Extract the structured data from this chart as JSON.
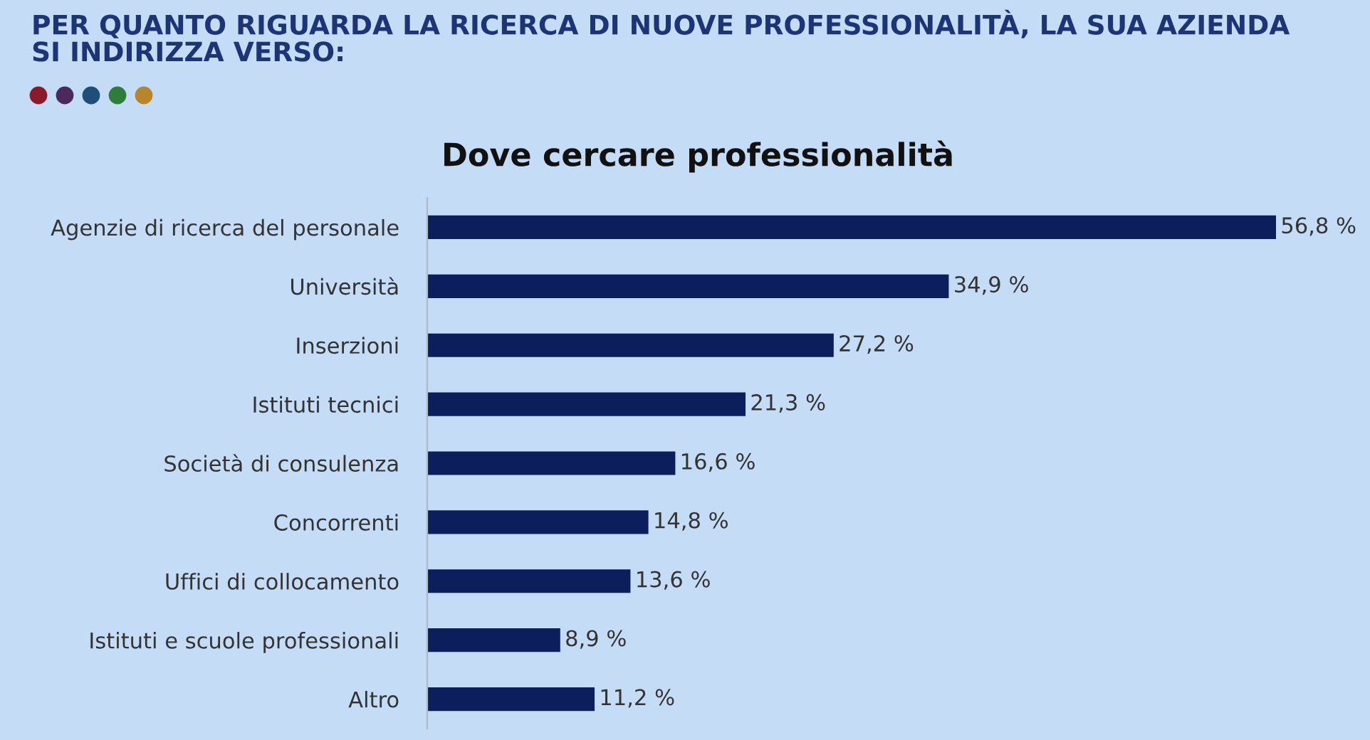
{
  "chart_data": {
    "type": "bar",
    "orientation": "horizontal",
    "title": "PER QUANTO RIGUARDA LA RICERCA DI NUOVE PROFESSIONALITÀ, LA SUA AZIENDA\nSI INDIRIZZA VERSO:",
    "subtitle": "Dove cercare professionalità",
    "categories": [
      "Agenzie di ricerca del personale",
      "Università",
      "Inserzioni",
      "Istituti tecnici",
      "Società di consulenza",
      "Concorrenti",
      "Uffici di collocamento",
      "Istituti e scuole professionali",
      "Altro"
    ],
    "values": [
      56.8,
      34.9,
      27.2,
      21.3,
      16.6,
      14.8,
      13.6,
      8.9,
      11.2
    ],
    "value_labels": [
      "56,8 %",
      "34,9 %",
      "27,2 %",
      "21,3 %",
      "16,6 %",
      "14,8 %",
      "13,6 %",
      "8,9 %",
      "11,2 %"
    ],
    "color": "#0c1f5c"
  }
}
